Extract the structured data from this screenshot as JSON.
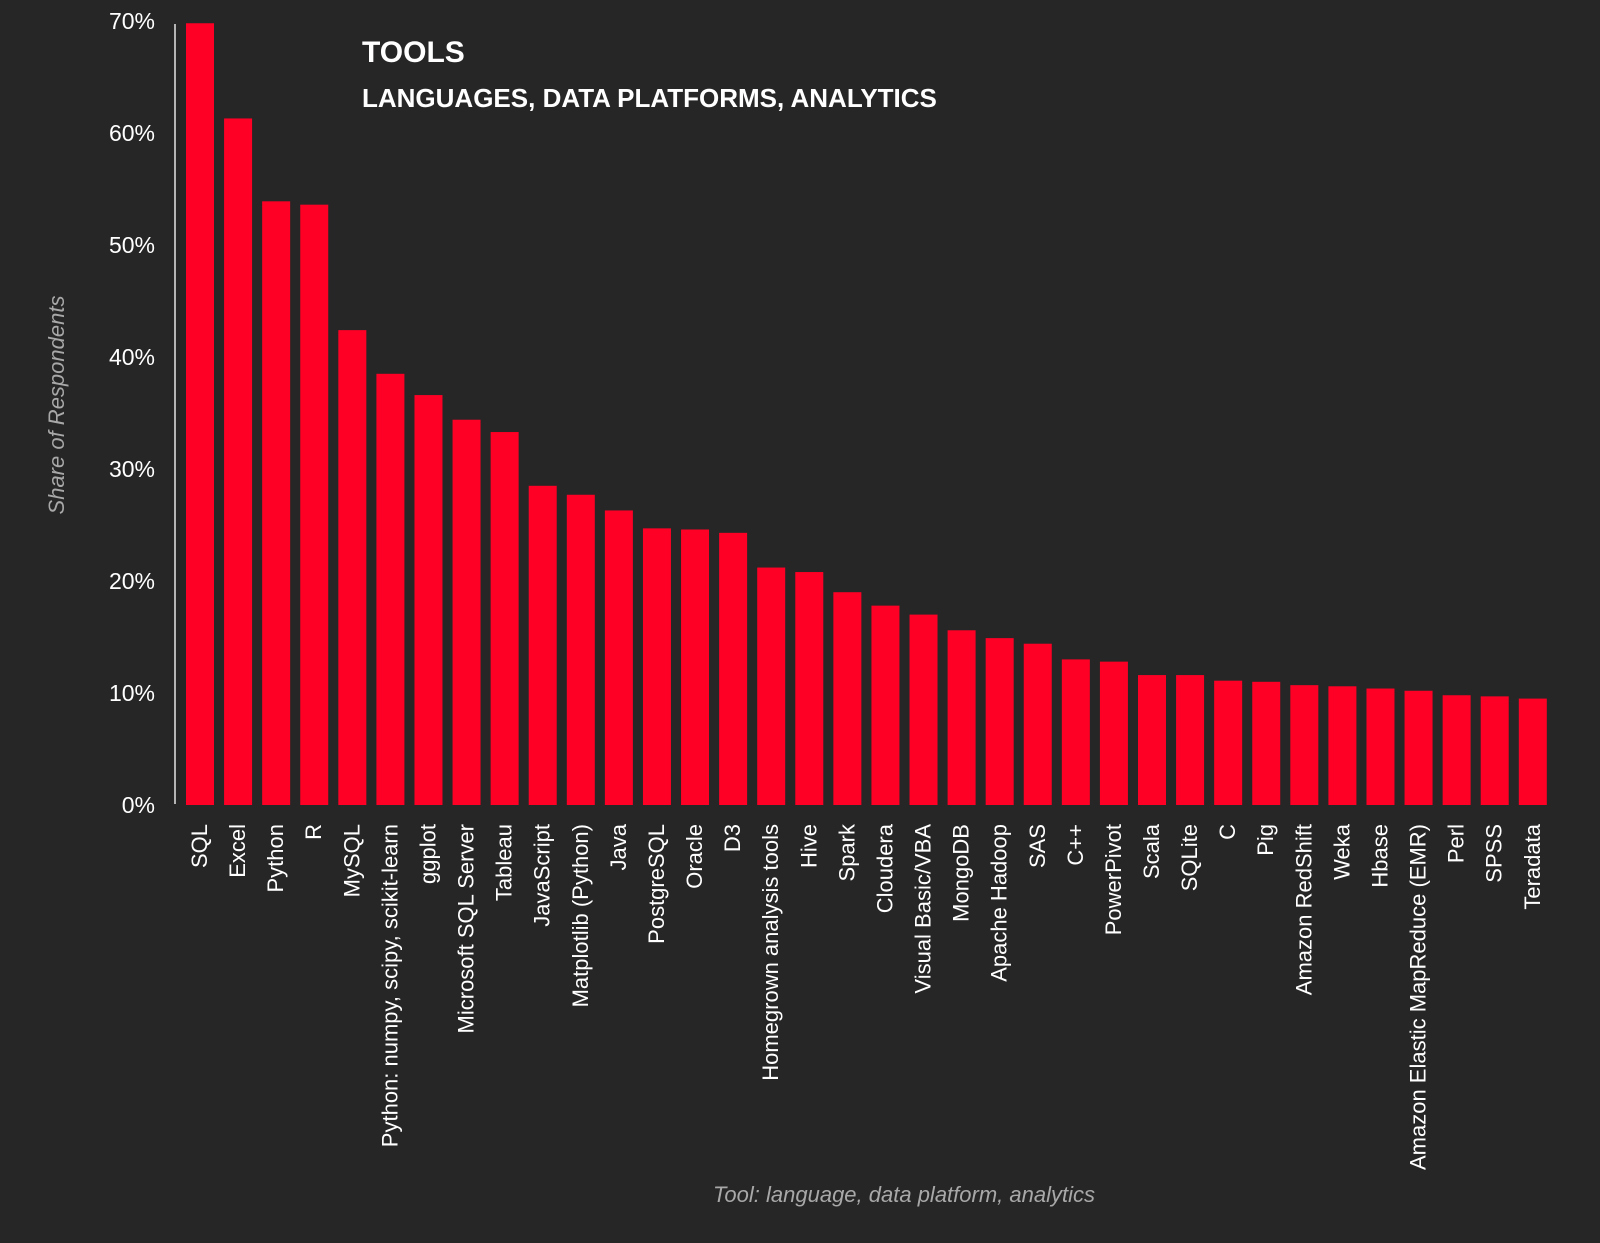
{
  "chart_data": {
    "type": "bar",
    "title": "TOOLS",
    "subtitle": "LANGUAGES, DATA PLATFORMS, ANALYTICS",
    "xlabel": "Tool: language, data platform, analytics",
    "ylabel": "Share of Respondents",
    "ylim": [
      0,
      70
    ],
    "yticks": [
      0,
      10,
      20,
      30,
      40,
      50,
      60,
      70
    ],
    "ytick_labels": [
      "0%",
      "10%",
      "20%",
      "30%",
      "40%",
      "50%",
      "60%",
      "70%"
    ],
    "grid": false,
    "legend": "none",
    "categories": [
      "SQL",
      "Excel",
      "Python",
      "R",
      "MySQL",
      "Python: numpy, scipy, scikit-learn",
      "ggplot",
      "Microsoft SQL Server",
      "Tableau",
      "JavaScript",
      "Matplotlib (Python)",
      "Java",
      "PostgreSQL",
      "Oracle",
      "D3",
      "Homegrown analysis tools",
      "Hive",
      "Spark",
      "Cloudera",
      "Visual Basic/VBA",
      "MongoDB",
      "Apache Hadoop",
      "SAS",
      "C++",
      "PowerPivot",
      "Scala",
      "SQLite",
      "C",
      "Pig",
      "Amazon RedShift",
      "Weka",
      "Hbase",
      "Amazon Elastic MapReduce (EMR)",
      "Perl",
      "SPSS",
      "Teradata"
    ],
    "values": [
      69.8,
      61.3,
      53.9,
      53.6,
      42.4,
      38.5,
      36.6,
      34.4,
      33.3,
      28.5,
      27.7,
      26.3,
      24.7,
      24.6,
      24.3,
      21.2,
      20.8,
      19.0,
      17.8,
      17.0,
      15.6,
      14.9,
      14.4,
      13.0,
      12.8,
      11.6,
      11.6,
      11.1,
      11.0,
      10.7,
      10.6,
      10.4,
      10.2,
      9.8,
      9.7,
      9.5
    ]
  },
  "colors": {
    "background": "#272626",
    "bar": "#fe0025",
    "title": "#ffffff",
    "tick_label": "#ffffff",
    "category_label": "#ffffff",
    "axis_title": "#a8a8a8",
    "axis_line": "#b4b4b4"
  }
}
